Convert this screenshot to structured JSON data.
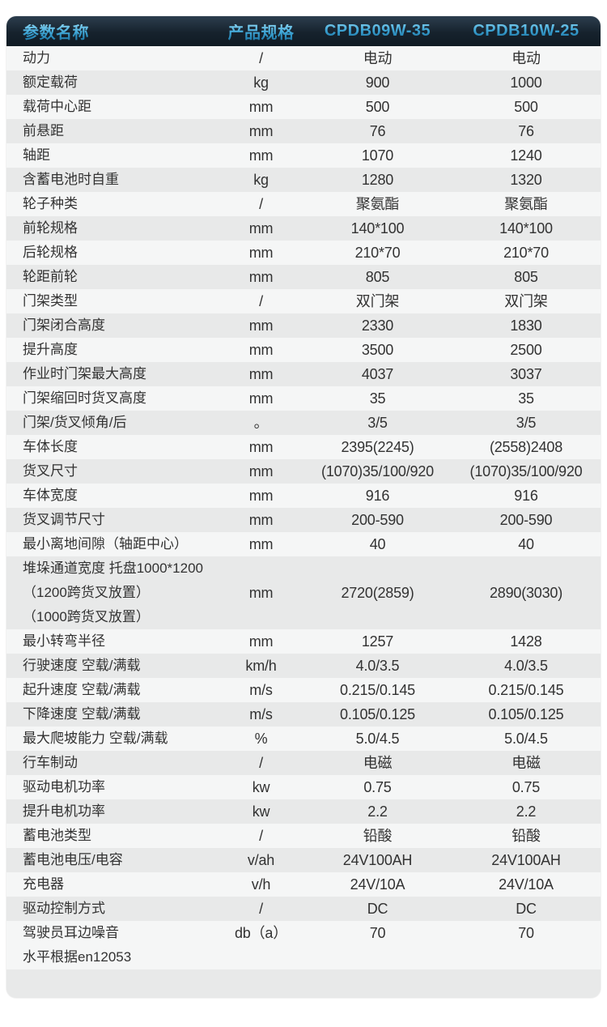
{
  "colors": {
    "page_background": "#ffffff",
    "header_background": "#16222d",
    "header_text_gradient_top": "#85d2f1",
    "header_text_gradient_bottom": "#166f9e",
    "row_light": "#f5f6f6",
    "row_dark": "#e8e9e9",
    "body_text": "#323232"
  },
  "table": {
    "headers": [
      "参数名称",
      "产品规格",
      "CPDB09W-35",
      "CPDB10W-25"
    ],
    "rows": [
      {
        "name": "动力",
        "unit": "/",
        "v1": "电动",
        "v2": "电动"
      },
      {
        "name": "额定载荷",
        "unit": "kg",
        "v1": "900",
        "v2": "1000"
      },
      {
        "name": "载荷中心距",
        "unit": "mm",
        "v1": "500",
        "v2": "500"
      },
      {
        "name": "前悬距",
        "unit": "mm",
        "v1": "76",
        "v2": "76"
      },
      {
        "name": "轴距",
        "unit": "mm",
        "v1": "1070",
        "v2": "1240"
      },
      {
        "name": "含蓄电池时自重",
        "unit": "kg",
        "v1": "1280",
        "v2": "1320"
      },
      {
        "name": "轮子种类",
        "unit": "/",
        "v1": "聚氨酯",
        "v2": "聚氨酯"
      },
      {
        "name": "前轮规格",
        "unit": "mm",
        "v1": "140*100",
        "v2": "140*100"
      },
      {
        "name": "后轮规格",
        "unit": "mm",
        "v1": "210*70",
        "v2": "210*70"
      },
      {
        "name": "轮距前轮",
        "unit": "mm",
        "v1": "805",
        "v2": "805"
      },
      {
        "name": "门架类型",
        "unit": "/",
        "v1": "双门架",
        "v2": "双门架"
      },
      {
        "name": "门架闭合高度",
        "unit": "mm",
        "v1": "2330",
        "v2": "1830"
      },
      {
        "name": "提升高度",
        "unit": "mm",
        "v1": "3500",
        "v2": "2500"
      },
      {
        "name": "作业时门架最大高度",
        "unit": "mm",
        "v1": "4037",
        "v2": "3037"
      },
      {
        "name": "门架缩回时货叉高度",
        "unit": "mm",
        "v1": "35",
        "v2": "35"
      },
      {
        "name": "门架/货叉倾角/后",
        "unit": "。",
        "v1": "3/5",
        "v2": "3/5"
      },
      {
        "name": "车体长度",
        "unit": "mm",
        "v1": "2395(2245)",
        "v2": "(2558)2408"
      },
      {
        "name": "货叉尺寸",
        "unit": "mm",
        "v1": "(1070)35/100/920",
        "v2": "(1070)35/100/920"
      },
      {
        "name": "车体宽度",
        "unit": "mm",
        "v1": "916",
        "v2": "916"
      },
      {
        "name": "货叉调节尺寸",
        "unit": "mm",
        "v1": "200-590",
        "v2": "200-590"
      },
      {
        "name": "最小离地间隙（轴距中心）",
        "unit": "mm",
        "v1": "40",
        "v2": "40"
      },
      {
        "name": "堆垛通道宽度 托盘1000*1200\n（1200跨货叉放置）\n（1000跨货叉放置）",
        "unit": "mm",
        "v1": "2720(2859)",
        "v2": "2890(3030)"
      },
      {
        "name": "最小转弯半径",
        "unit": "mm",
        "v1": "1257",
        "v2": "1428"
      },
      {
        "name": "行驶速度 空载/满载",
        "unit": "km/h",
        "v1": "4.0/3.5",
        "v2": "4.0/3.5"
      },
      {
        "name": "起升速度 空载/满载",
        "unit": "m/s",
        "v1": "0.215/0.145",
        "v2": "0.215/0.145"
      },
      {
        "name": "下降速度 空载/满载",
        "unit": "m/s",
        "v1": "0.105/0.125",
        "v2": "0.105/0.125"
      },
      {
        "name": "最大爬坡能力 空载/满载",
        "unit": "%",
        "v1": "5.0/4.5",
        "v2": "5.0/4.5"
      },
      {
        "name": "行车制动",
        "unit": "/",
        "v1": "电磁",
        "v2": "电磁"
      },
      {
        "name": "驱动电机功率",
        "unit": "kw",
        "v1": "0.75",
        "v2": "0.75"
      },
      {
        "name": "提升电机功率",
        "unit": "kw",
        "v1": "2.2",
        "v2": "2.2"
      },
      {
        "name": "蓄电池类型",
        "unit": "/",
        "v1": "铅酸",
        "v2": "铅酸"
      },
      {
        "name": "蓄电池电压/电容",
        "unit": "v/ah",
        "v1": "24V100AH",
        "v2": "24V100AH"
      },
      {
        "name": "充电器",
        "unit": "v/h",
        "v1": "24V/10A",
        "v2": "24V/10A"
      },
      {
        "name": "驱动控制方式",
        "unit": "/",
        "v1": "DC",
        "v2": "DC"
      },
      {
        "name": "驾驶员耳边噪音\n水平根据en12053",
        "unit": "db（a）",
        "v1": "70",
        "v2": "70"
      }
    ]
  }
}
